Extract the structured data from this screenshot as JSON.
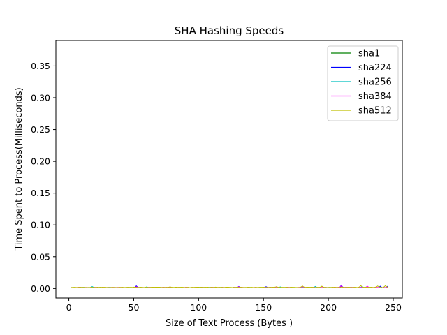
{
  "chart_data": {
    "type": "line",
    "title": "SHA Hashing Speeds",
    "xlabel": "Size of Text Process (Bytes )",
    "ylabel": "Time Spent to Process(Milliseconds)",
    "xlim": [
      -10,
      257
    ],
    "ylim": [
      -0.015,
      0.39
    ],
    "xticks": [
      0,
      50,
      100,
      150,
      200,
      250
    ],
    "yticks": [
      0.0,
      0.05,
      0.1,
      0.15,
      0.2,
      0.25,
      0.3,
      0.35
    ],
    "yticks_labels": [
      "0.00",
      "0.05",
      "0.10",
      "0.15",
      "0.20",
      "0.25",
      "0.30",
      "0.35"
    ],
    "grid": false,
    "legend_position": "top-right",
    "x_range": [
      2,
      246
    ],
    "series": [
      {
        "name": "sha1",
        "color": "#008000",
        "baseline": 0.0012,
        "spikes": [
          [
            52,
            0.003
          ],
          [
            131,
            0.0025
          ],
          [
            210,
            0.0035
          ]
        ]
      },
      {
        "name": "sha224",
        "color": "#0000ff",
        "baseline": 0.0013,
        "spikes": [
          [
            52,
            0.004
          ],
          [
            131,
            0.0032
          ],
          [
            152,
            0.0028
          ],
          [
            210,
            0.005
          ],
          [
            240,
            0.0035
          ],
          [
            246,
            0.004
          ]
        ]
      },
      {
        "name": "sha256",
        "color": "#00bfbf",
        "baseline": 0.0014,
        "spikes": [
          [
            18,
            0.003
          ],
          [
            60,
            0.0025
          ],
          [
            100,
            0.002
          ],
          [
            163,
            0.0025
          ],
          [
            190,
            0.0032
          ],
          [
            226,
            0.003
          ]
        ]
      },
      {
        "name": "sha384",
        "color": "#ff00ff",
        "baseline": 0.0016,
        "spikes": [
          [
            52,
            0.0028
          ],
          [
            131,
            0.0026
          ],
          [
            180,
            0.003
          ],
          [
            210,
            0.004
          ],
          [
            230,
            0.0035
          ]
        ]
      },
      {
        "name": "sha512",
        "color": "#bfbf00",
        "baseline": 0.0018,
        "spikes": [
          [
            78,
            0.0025
          ],
          [
            160,
            0.0028
          ],
          [
            180,
            0.004
          ],
          [
            195,
            0.0035
          ],
          [
            225,
            0.0045
          ],
          [
            238,
            0.004
          ],
          [
            244,
            0.0045
          ]
        ]
      }
    ]
  }
}
